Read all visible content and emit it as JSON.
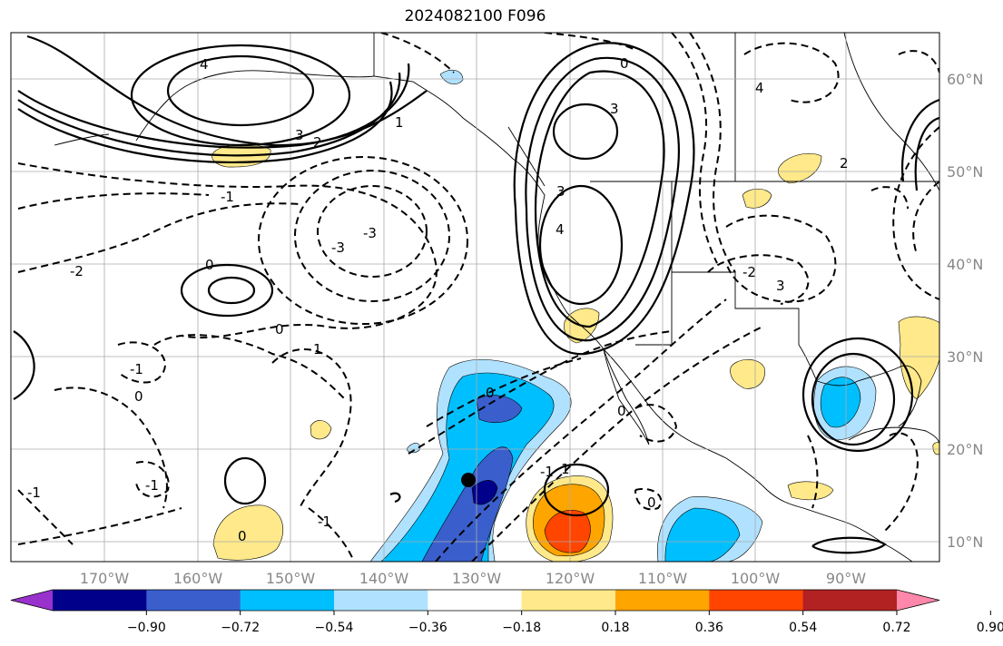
{
  "title": "2024082100 F096",
  "map": {
    "lon_labels": [
      "170°W",
      "160°W",
      "150°W",
      "140°W",
      "130°W",
      "120°W",
      "110°W",
      "100°W",
      "90°W"
    ],
    "lat_labels": [
      "60°N",
      "50°N",
      "40°N",
      "30°N",
      "20°N",
      "10°N"
    ],
    "contour_labels": [
      "4",
      "3",
      "2",
      "1",
      "0",
      "-1",
      "-2",
      "-3",
      "3",
      "4",
      "0",
      "0",
      "-1",
      "0",
      "-1",
      "0",
      "1",
      "3",
      "2",
      "0",
      "-2",
      "-3",
      "4",
      "0",
      "3",
      "0",
      "-1",
      "-1",
      "-1",
      "1"
    ],
    "marker": "storm-center"
  },
  "colorbar": {
    "tick_labels": [
      "−0.90",
      "−0.72",
      "−0.54",
      "−0.36",
      "−0.18",
      "0.18",
      "0.36",
      "0.54",
      "0.72",
      "0.90"
    ],
    "colors": [
      "#9932cc",
      "#00008b",
      "#3a5fcd",
      "#00bfff",
      "#b0e2ff",
      "#ffffff",
      "#ffe98a",
      "#ffa500",
      "#ff4500",
      "#b22222",
      "#ff88aa"
    ]
  }
}
